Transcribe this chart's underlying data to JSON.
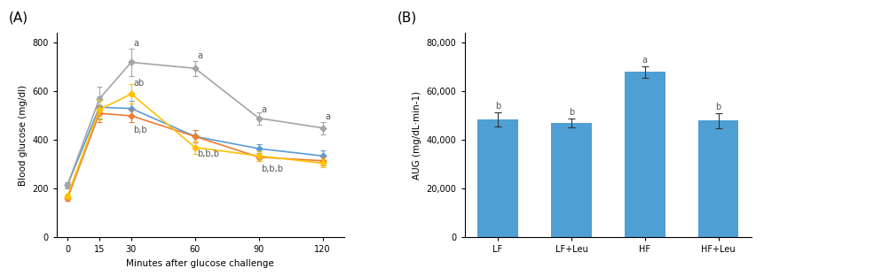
{
  "panel_A_title": "(A)",
  "panel_B_title": "(B)",
  "time_points": [
    0,
    15,
    30,
    60,
    90,
    120
  ],
  "line_data": {
    "LF": {
      "values": [
        215,
        535,
        530,
        415,
        365,
        335
      ],
      "errors": [
        10,
        45,
        30,
        25,
        18,
        22
      ],
      "color": "#5B9BD5",
      "marker": "D",
      "linestyle": "-"
    },
    "LF+Leu": {
      "values": [
        160,
        510,
        500,
        415,
        330,
        315
      ],
      "errors": [
        10,
        35,
        25,
        25,
        16,
        18
      ],
      "color": "#ED7D31",
      "marker": "D",
      "linestyle": "-"
    },
    "HF": {
      "values": [
        215,
        570,
        720,
        695,
        490,
        450
      ],
      "errors": [
        12,
        50,
        55,
        30,
        25,
        25
      ],
      "color": "#A5A5A5",
      "marker": "D",
      "linestyle": "-"
    },
    "HF+Leu": {
      "values": [
        170,
        525,
        590,
        370,
        335,
        305
      ],
      "errors": [
        10,
        40,
        40,
        28,
        20,
        18
      ],
      "color": "#FFC000",
      "marker": "D",
      "linestyle": "-"
    }
  },
  "xlabel_A": "Minutes after glucose challenge",
  "ylabel_A": "Blood glucose (mg/dl)",
  "xlim_A": [
    -5,
    130
  ],
  "ylim_A": [
    0,
    840
  ],
  "yticks_A": [
    0,
    200,
    400,
    600,
    800
  ],
  "xticks_A": [
    0,
    15,
    30,
    60,
    90,
    120
  ],
  "bar_categories": [
    "LF",
    "LF+Leu",
    "HF",
    "HF+Leu"
  ],
  "bar_values": [
    48500,
    47000,
    68000,
    48000
  ],
  "bar_errors": [
    2800,
    1800,
    2500,
    3200
  ],
  "bar_color": "#4D9FD4",
  "bar_labels": [
    "b",
    "b",
    "a",
    "b"
  ],
  "ylabel_B": "AUG (mg/dL·min-1)",
  "ylim_B": [
    0,
    84000
  ],
  "yticks_B": [
    0,
    20000,
    40000,
    60000,
    80000
  ],
  "ytick_labels_B": [
    "0",
    "20,000",
    "40,000",
    "60,000",
    "80,000"
  ],
  "legend_order": [
    "LF",
    "LF+Leu",
    "HF",
    "HF+Leu"
  ],
  "bg_color": "#FFFFFF",
  "panel_title_fontsize": 11,
  "axis_label_fontsize": 7.5,
  "tick_fontsize": 7,
  "legend_fontsize": 7.5,
  "annotation_fontsize": 7
}
